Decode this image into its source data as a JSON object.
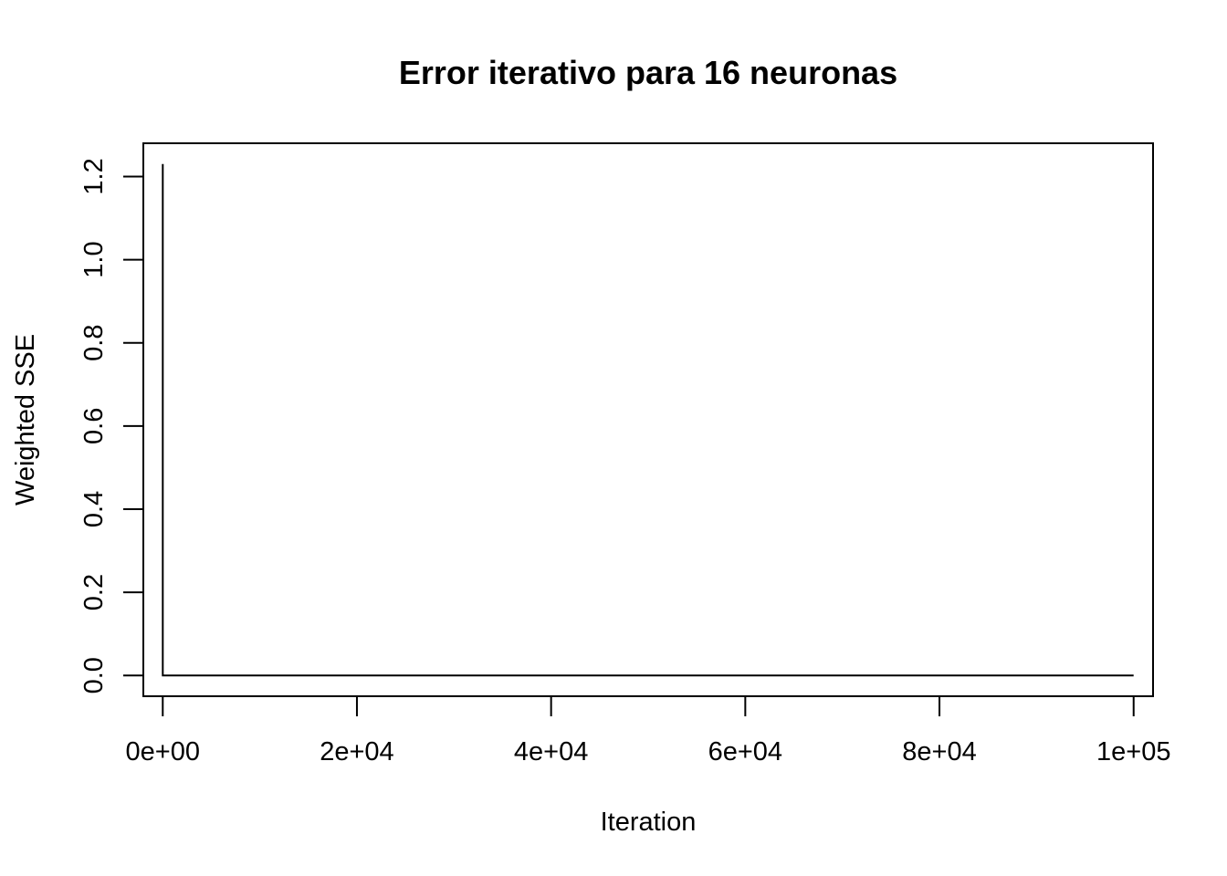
{
  "chart_data": {
    "type": "line",
    "title": "Error iterativo para 16 neuronas",
    "xlabel": "Iteration",
    "ylabel": "Weighted SSE",
    "xlim": [
      -2000,
      102000
    ],
    "ylim": [
      -0.05,
      1.28
    ],
    "x_ticks": [
      0,
      20000,
      40000,
      60000,
      80000,
      100000
    ],
    "x_tick_labels": [
      "0e+00",
      "2e+04",
      "4e+04",
      "6e+04",
      "8e+04",
      "1e+05"
    ],
    "y_ticks": [
      0.0,
      0.2,
      0.4,
      0.6,
      0.8,
      1.0,
      1.2
    ],
    "y_tick_labels": [
      "0.0",
      "0.2",
      "0.4",
      "0.6",
      "0.8",
      "1.0",
      "1.2"
    ],
    "grid": false,
    "color": "#000000",
    "x": [
      0,
      1,
      100000
    ],
    "values": [
      1.23,
      0.0,
      0.0
    ]
  }
}
